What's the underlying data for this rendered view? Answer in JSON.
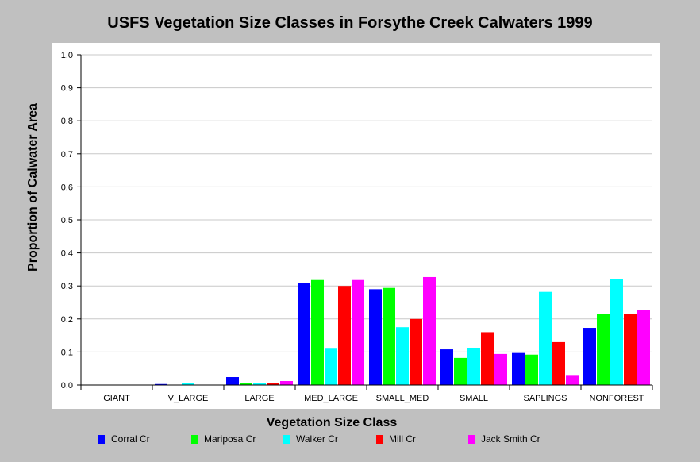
{
  "chart_data": {
    "type": "bar",
    "title": "USFS Vegetation Size Classes in Forsythe Creek Calwaters 1999",
    "xlabel": "Vegetation Size Class",
    "ylabel": "Proportion of Calwater Area",
    "ylim": [
      0,
      1.0
    ],
    "yticks": [
      "0.0",
      "0.1",
      "0.2",
      "0.3",
      "0.4",
      "0.5",
      "0.6",
      "0.7",
      "0.8",
      "0.9",
      "1.0"
    ],
    "grid": true,
    "legend_position": "bottom",
    "categories": [
      "GIANT",
      "V_LARGE",
      "LARGE",
      "MED_LARGE",
      "SMALL_MED",
      "SMALL",
      "SAPLINGS",
      "NONFOREST"
    ],
    "series": [
      {
        "name": "Corral Cr",
        "color": "#0000ff",
        "values": [
          0,
          0.003,
          0.024,
          0.31,
          0.29,
          0.108,
          0.097,
          0.173
        ]
      },
      {
        "name": "Mariposa Cr",
        "color": "#00ff00",
        "values": [
          0,
          0,
          0.005,
          0.318,
          0.294,
          0.082,
          0.092,
          0.214
        ]
      },
      {
        "name": "Walker Cr",
        "color": "#00ffff",
        "values": [
          0,
          0.005,
          0.005,
          0.11,
          0.175,
          0.113,
          0.282,
          0.32
        ]
      },
      {
        "name": "Mill Cr",
        "color": "#ff0000",
        "values": [
          0,
          0,
          0.005,
          0.3,
          0.2,
          0.16,
          0.13,
          0.214
        ]
      },
      {
        "name": "Jack Smith Cr",
        "color": "#ff00ff",
        "values": [
          0,
          0,
          0.012,
          0.318,
          0.327,
          0.094,
          0.028,
          0.226
        ]
      }
    ]
  }
}
